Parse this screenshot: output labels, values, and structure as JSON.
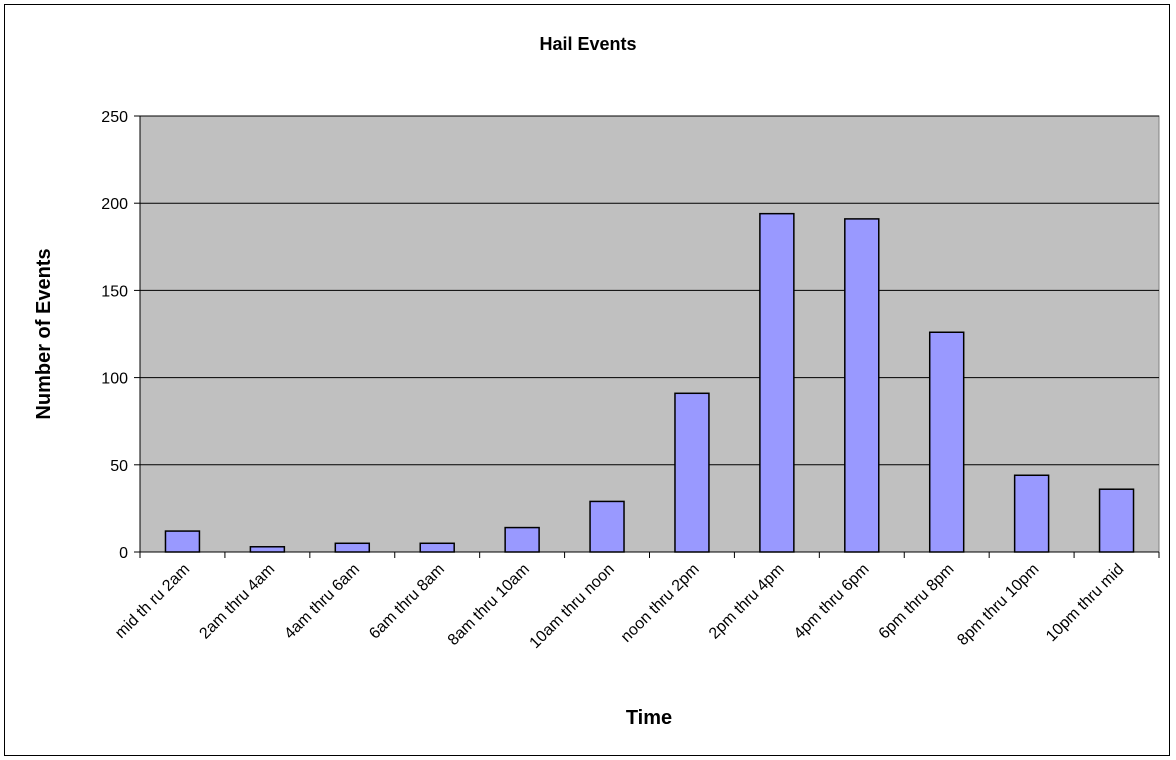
{
  "chart_data": {
    "type": "bar",
    "title": "Hail Events",
    "xlabel": "Time",
    "ylabel": "Number of Events",
    "categories": [
      "mid th ru 2am",
      "2am thru 4am",
      "4am thru 6am",
      "6am thru 8am",
      "8am thru 10am",
      "10am thru noon",
      "noon thru 2pm",
      "2pm thru 4pm",
      "4pm thru 6pm",
      "6pm thru 8pm",
      "8pm thru 10pm",
      "10pm thru mid"
    ],
    "values": [
      12,
      3,
      5,
      5,
      14,
      29,
      91,
      194,
      191,
      126,
      44,
      36
    ],
    "ylim": [
      0,
      250
    ],
    "yticks": [
      "0",
      "50",
      "100",
      "150",
      "200",
      "250"
    ],
    "grid": true,
    "legend": "none",
    "colors": {
      "bar_fill": "#9999ff",
      "bar_stroke": "#000000",
      "plot_background": "#c0c0c0",
      "gridline": "#000000"
    }
  }
}
